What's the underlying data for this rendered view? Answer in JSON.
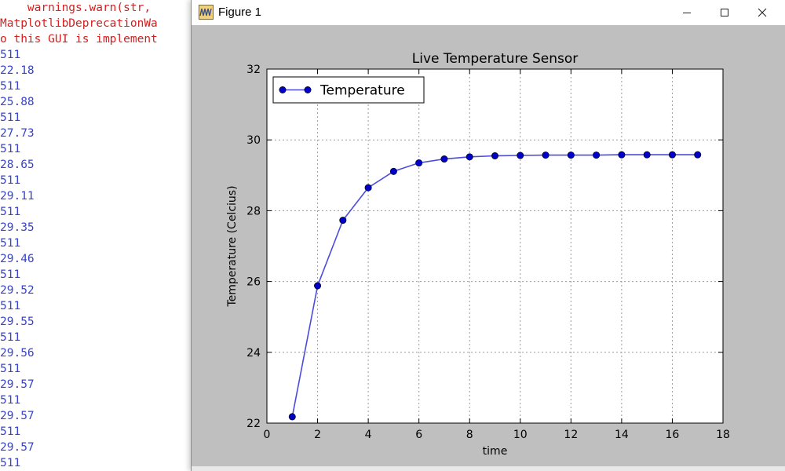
{
  "console": {
    "warning_lines": [
      "    warnings.warn(str,",
      "MatplotlibDeprecationWa",
      "o this GUI is implement"
    ],
    "output_lines": [
      "511",
      "22.18",
      "511",
      "25.88",
      "511",
      "27.73",
      "511",
      "28.65",
      "511",
      "29.11",
      "511",
      "29.35",
      "511",
      "29.46",
      "511",
      "29.52",
      "511",
      "29.55",
      "511",
      "29.56",
      "511",
      "29.57",
      "511",
      "29.57",
      "511",
      "29.57",
      "511"
    ]
  },
  "window": {
    "title": "Figure 1",
    "icon": "matplotlib-figure-icon",
    "controls": [
      "minimize-icon",
      "maximize-icon",
      "close-icon"
    ]
  },
  "colors": {
    "warning_text": "#d42020",
    "output_text": "#3a44c8",
    "canvas_bg": "#bfbfbf",
    "series_line": "#4b4bdc",
    "series_marker": "#0000c8"
  },
  "chart_data": {
    "type": "line",
    "title": "Live Temperature Sensor",
    "xlabel": "time",
    "ylabel": "Temperature (Celcius)",
    "xlim": [
      0,
      18
    ],
    "ylim": [
      22,
      32
    ],
    "xticks": [
      0,
      2,
      4,
      6,
      8,
      10,
      12,
      14,
      16,
      18
    ],
    "yticks": [
      22,
      24,
      26,
      28,
      30,
      32
    ],
    "grid": true,
    "legend": "top-left",
    "series": [
      {
        "name": "Temperature",
        "marker": "circle",
        "x": [
          1,
          2,
          3,
          4,
          5,
          6,
          7,
          8,
          9,
          10,
          11,
          12,
          13,
          14,
          15,
          16,
          17
        ],
        "y": [
          22.18,
          25.88,
          27.73,
          28.65,
          29.11,
          29.35,
          29.46,
          29.52,
          29.55,
          29.56,
          29.57,
          29.57,
          29.57,
          29.58,
          29.58,
          29.58,
          29.58
        ]
      }
    ]
  }
}
